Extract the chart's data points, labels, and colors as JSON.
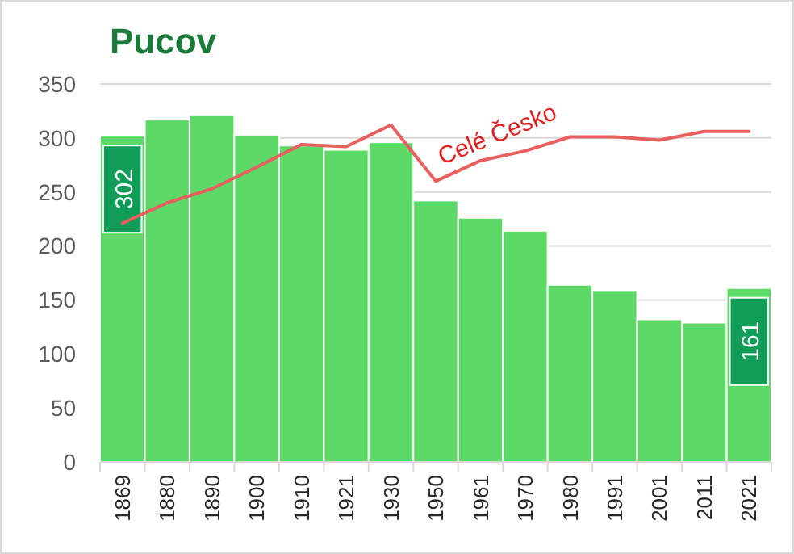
{
  "chart_data": {
    "type": "bar",
    "title": "Pucov",
    "categories": [
      "1869",
      "1880",
      "1890",
      "1900",
      "1910",
      "1921",
      "1930",
      "1950",
      "1961",
      "1970",
      "1980",
      "1991",
      "2001",
      "2011",
      "2021"
    ],
    "series": [
      {
        "color": "#5cd966",
        "values": [
          302,
          317,
          321,
          303,
          293,
          289,
          296,
          242,
          226,
          214,
          164,
          159,
          132,
          129,
          161
        ],
        "value_labels": [
          "302",
          null,
          null,
          null,
          null,
          null,
          null,
          null,
          null,
          null,
          null,
          null,
          null,
          null,
          "161"
        ]
      },
      {
        "type": "line",
        "name": "Celé Česko",
        "color": "#e8605e",
        "values": [
          221,
          240,
          253,
          273,
          294,
          292,
          312,
          260,
          279,
          288,
          301,
          301,
          298,
          306,
          306
        ]
      }
    ],
    "ylim": [
      0,
      350
    ],
    "yticks": [
      0,
      50,
      100,
      150,
      200,
      250,
      300,
      350
    ],
    "grid": "y"
  }
}
